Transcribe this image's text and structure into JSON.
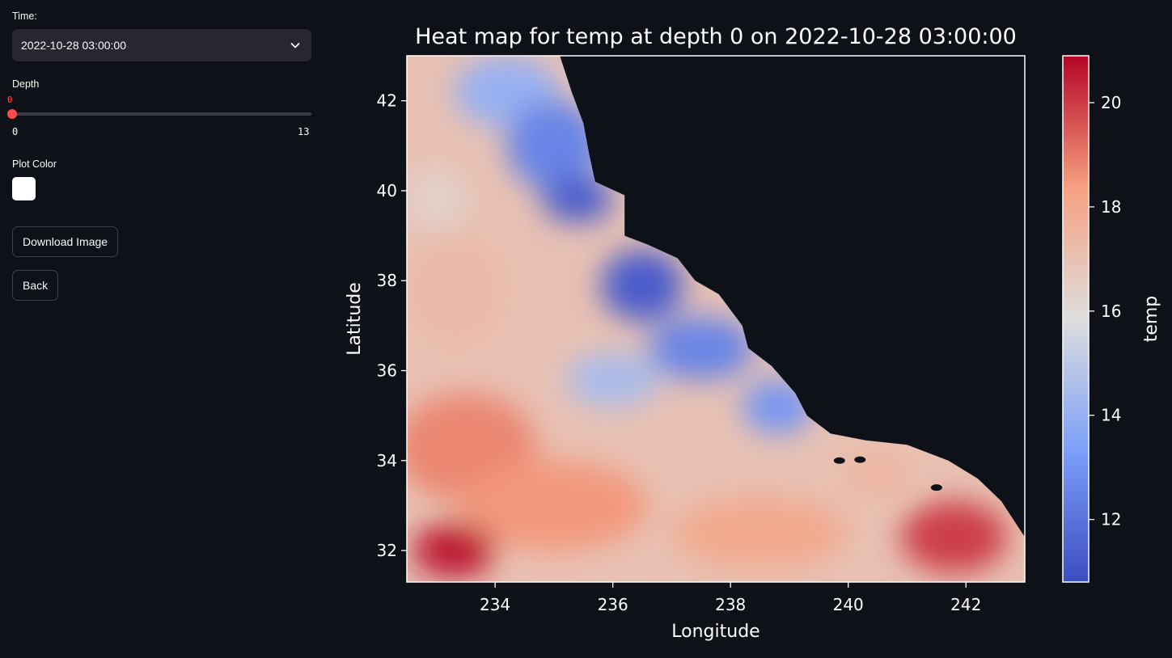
{
  "sidebar": {
    "time_label": "Time:",
    "time_value": "2022-10-28 03:00:00",
    "depth_label": "Depth",
    "depth_value": "0",
    "depth_min": "0",
    "depth_max": "13",
    "plot_color_label": "Plot Color",
    "plot_color_value": "#ffffff",
    "download_label": "Download Image",
    "back_label": "Back"
  },
  "chart_data": {
    "type": "heatmap",
    "title": "Heat map for temp at depth 0 on 2022-10-28 03:00:00",
    "xlabel": "Longitude",
    "ylabel": "Latitude",
    "xlim": [
      232.5,
      243.0
    ],
    "ylim": [
      31.3,
      43.0
    ],
    "x_ticks": [
      "234",
      "236",
      "238",
      "240",
      "242"
    ],
    "y_ticks": [
      "32",
      "34",
      "36",
      "38",
      "40",
      "42"
    ],
    "colorbar": {
      "label": "temp",
      "range": [
        10.8,
        20.9
      ],
      "ticks": [
        "12",
        "14",
        "16",
        "18",
        "20"
      ],
      "colormap": "coolwarm"
    },
    "land_color": "#0e1117",
    "coast": [
      [
        235.1,
        43.0
      ],
      [
        235.3,
        42.2
      ],
      [
        235.5,
        41.5
      ],
      [
        235.6,
        40.8
      ],
      [
        235.7,
        40.2
      ],
      [
        236.2,
        39.9
      ],
      [
        236.2,
        39.0
      ],
      [
        236.6,
        38.8
      ],
      [
        237.1,
        38.5
      ],
      [
        237.4,
        38.0
      ],
      [
        237.8,
        37.7
      ],
      [
        238.2,
        37.0
      ],
      [
        238.3,
        36.5
      ],
      [
        238.7,
        36.1
      ],
      [
        239.1,
        35.5
      ],
      [
        239.3,
        35.0
      ],
      [
        239.7,
        34.6
      ],
      [
        240.3,
        34.45
      ],
      [
        241.0,
        34.35
      ],
      [
        241.7,
        34.0
      ],
      [
        242.2,
        33.6
      ],
      [
        242.6,
        33.1
      ],
      [
        243.0,
        32.3
      ]
    ],
    "regions": [
      {
        "x": 234.2,
        "y": 42.2,
        "rx": 0.9,
        "ry": 0.8,
        "temp": 14.0
      },
      {
        "x": 235.0,
        "y": 41.0,
        "rx": 0.8,
        "ry": 1.0,
        "temp": 12.5
      },
      {
        "x": 235.4,
        "y": 39.8,
        "rx": 0.6,
        "ry": 0.5,
        "temp": 11.3
      },
      {
        "x": 236.5,
        "y": 37.9,
        "rx": 0.7,
        "ry": 0.8,
        "temp": 11.3
      },
      {
        "x": 237.5,
        "y": 36.5,
        "rx": 0.9,
        "ry": 0.7,
        "temp": 12.5
      },
      {
        "x": 238.8,
        "y": 35.2,
        "rx": 0.6,
        "ry": 0.6,
        "temp": 13.0
      },
      {
        "x": 236.0,
        "y": 35.8,
        "rx": 0.8,
        "ry": 0.6,
        "temp": 14.5
      },
      {
        "x": 233.3,
        "y": 37.8,
        "rx": 0.9,
        "ry": 1.3,
        "temp": 17.3
      },
      {
        "x": 233.0,
        "y": 39.8,
        "rx": 0.5,
        "ry": 0.7,
        "temp": 16.3
      },
      {
        "x": 233.5,
        "y": 34.3,
        "rx": 1.2,
        "ry": 1.2,
        "temp": 18.8
      },
      {
        "x": 235.0,
        "y": 33.0,
        "rx": 1.6,
        "ry": 1.0,
        "temp": 18.5
      },
      {
        "x": 233.3,
        "y": 32.0,
        "rx": 0.7,
        "ry": 0.6,
        "temp": 20.6
      },
      {
        "x": 238.5,
        "y": 32.4,
        "rx": 1.5,
        "ry": 0.8,
        "temp": 18.0
      },
      {
        "x": 241.8,
        "y": 32.3,
        "rx": 0.9,
        "ry": 0.8,
        "temp": 20.0
      },
      {
        "x": 240.5,
        "y": 33.7,
        "rx": 0.6,
        "ry": 0.5,
        "temp": 17.5
      }
    ],
    "islands": [
      {
        "x": 239.85,
        "y": 34.0
      },
      {
        "x": 240.2,
        "y": 34.02
      },
      {
        "x": 241.5,
        "y": 33.4
      }
    ]
  }
}
